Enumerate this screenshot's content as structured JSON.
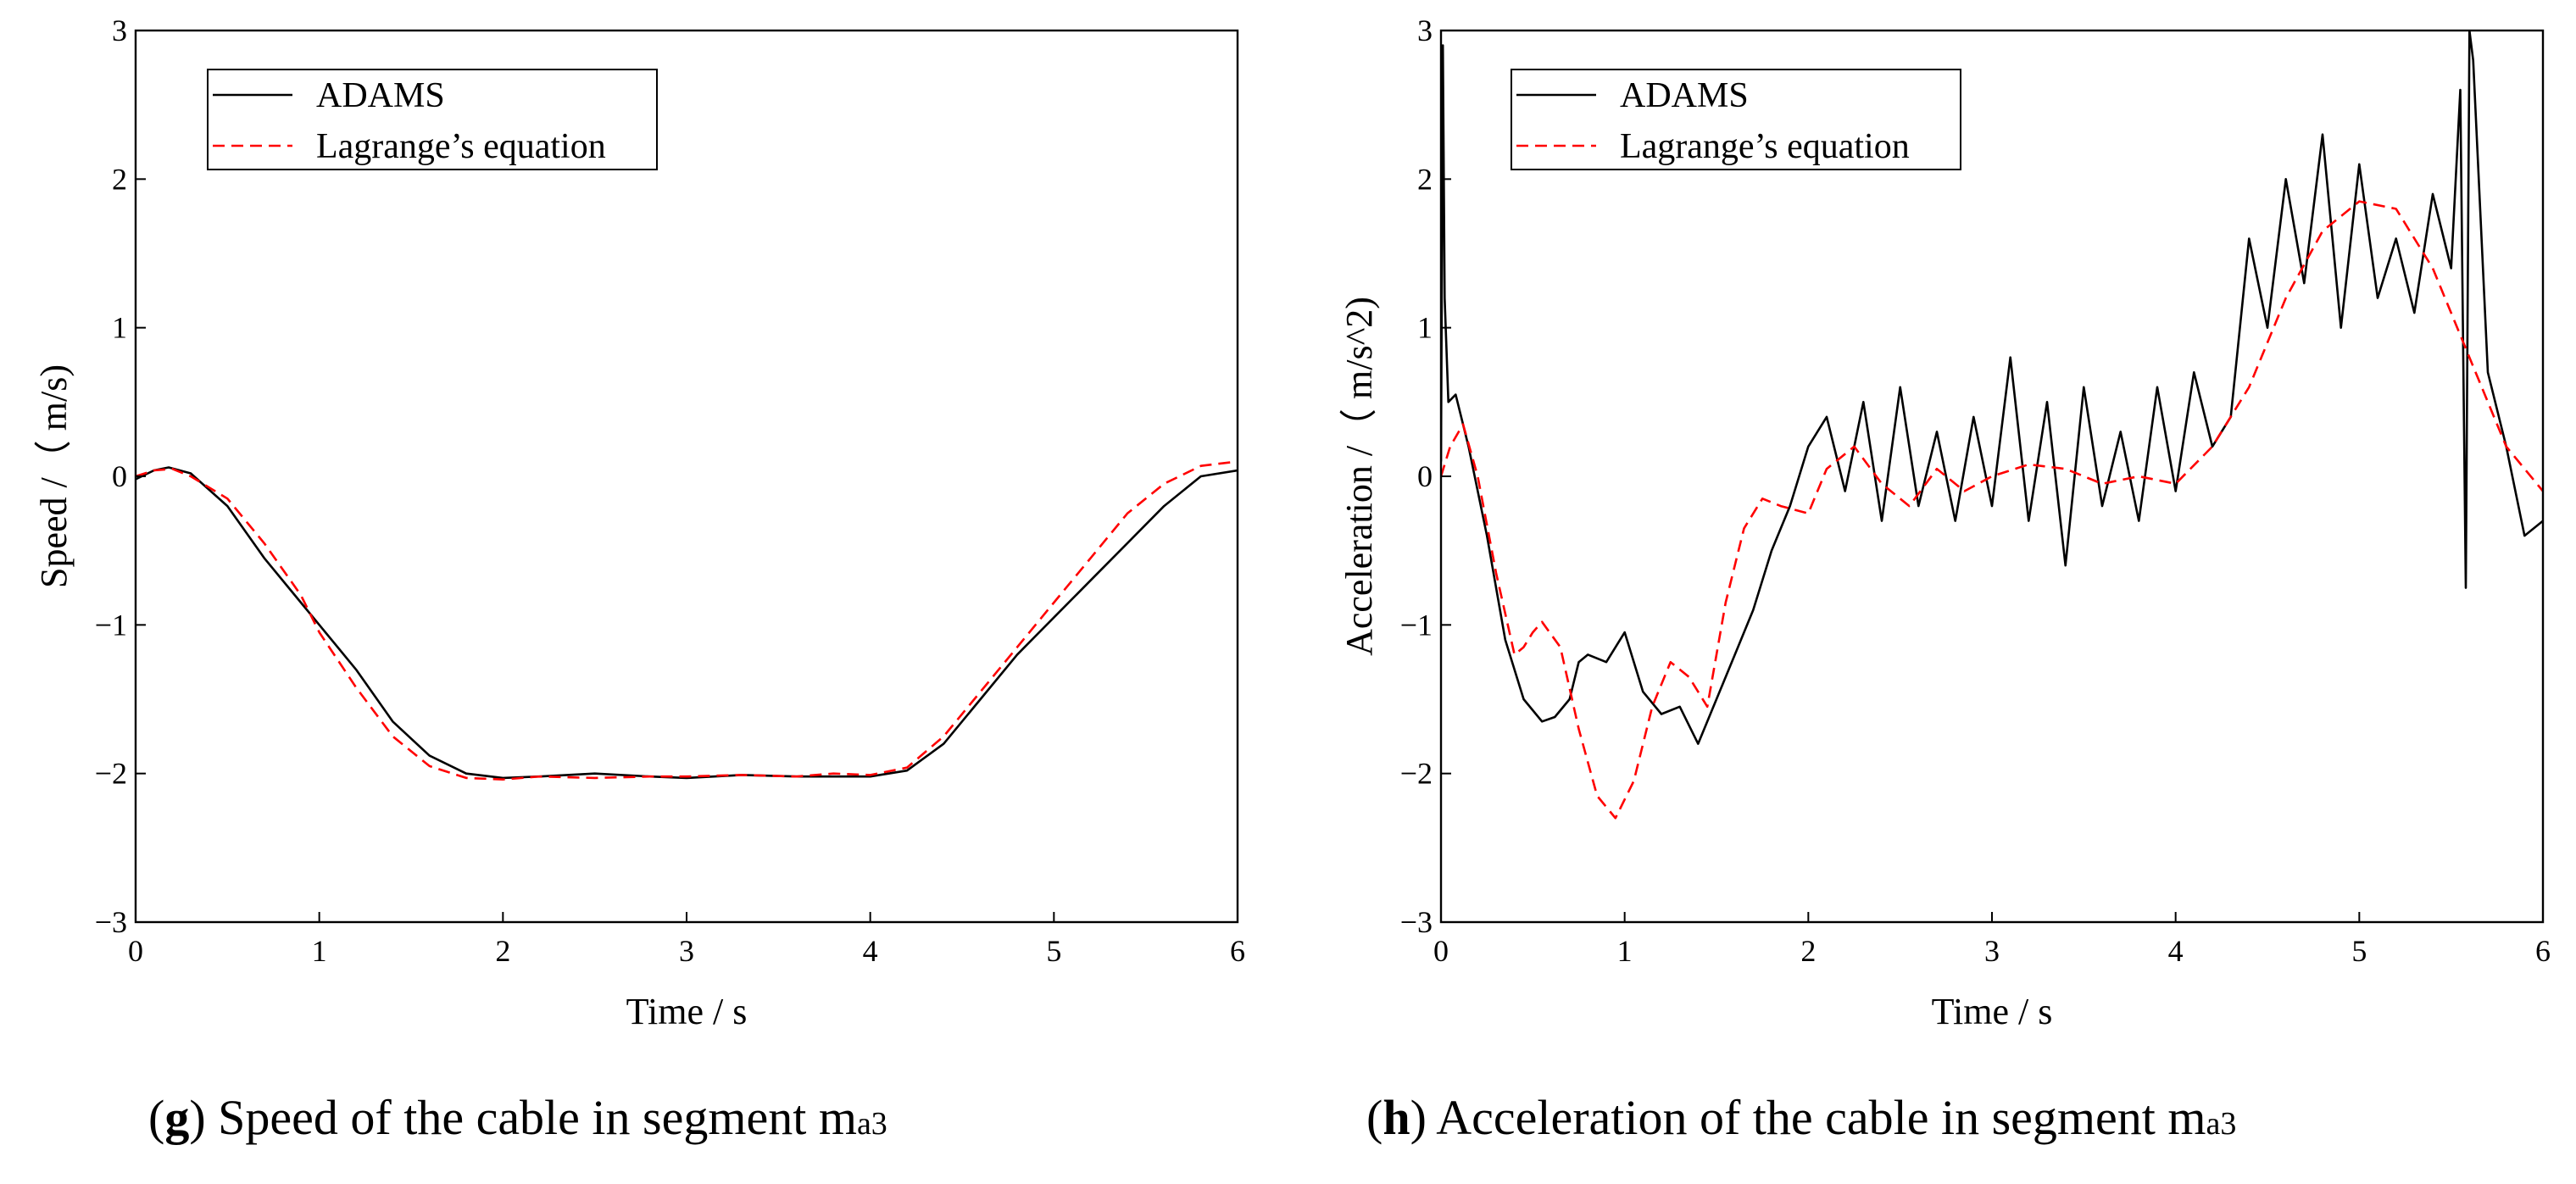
{
  "chart_data": [
    {
      "type": "line",
      "xlabel": "Time / s",
      "ylabel": "Speed /（ m/s)",
      "xlim": [
        0,
        6
      ],
      "ylim": [
        -3,
        3
      ],
      "xticks": [
        0,
        1,
        2,
        3,
        4,
        5,
        6
      ],
      "yticks": [
        -3,
        -2,
        -1,
        0,
        1,
        2,
        3
      ],
      "xtick_labels": [
        "0",
        "1",
        "2",
        "3",
        "4",
        "5",
        "6"
      ],
      "ytick_labels": [
        "−3",
        "−2",
        "−1",
        "0",
        "1",
        "2",
        "3"
      ],
      "grid": false,
      "legend_position": "top-left",
      "series": [
        {
          "name": "ADAMS",
          "color": "#000000",
          "style": "solid",
          "x": [
            0,
            0.1,
            0.18,
            0.3,
            0.5,
            0.7,
            0.9,
            1.0,
            1.2,
            1.4,
            1.6,
            1.8,
            2.0,
            2.2,
            2.5,
            2.8,
            3.0,
            3.3,
            3.6,
            3.8,
            4.0,
            4.2,
            4.4,
            4.6,
            4.8,
            5.0,
            5.2,
            5.4,
            5.6,
            5.8,
            6.0
          ],
          "y": [
            -0.02,
            0.04,
            0.06,
            0.02,
            -0.2,
            -0.55,
            -0.85,
            -1.0,
            -1.3,
            -1.65,
            -1.88,
            -2.0,
            -2.03,
            -2.02,
            -2.0,
            -2.02,
            -2.03,
            -2.01,
            -2.02,
            -2.02,
            -2.02,
            -1.98,
            -1.8,
            -1.5,
            -1.2,
            -0.95,
            -0.7,
            -0.45,
            -0.2,
            0.0,
            0.04
          ]
        },
        {
          "name": "Lagrange’s equation",
          "color": "#ff0000",
          "style": "dashed",
          "x": [
            0,
            0.1,
            0.2,
            0.3,
            0.5,
            0.7,
            0.9,
            1.0,
            1.2,
            1.4,
            1.6,
            1.8,
            2.0,
            2.2,
            2.5,
            2.8,
            3.0,
            3.3,
            3.6,
            3.8,
            4.0,
            4.2,
            4.4,
            4.6,
            4.8,
            5.0,
            5.2,
            5.4,
            5.6,
            5.8,
            6.0
          ],
          "y": [
            0.0,
            0.04,
            0.05,
            0.0,
            -0.15,
            -0.45,
            -0.8,
            -1.05,
            -1.42,
            -1.75,
            -1.95,
            -2.03,
            -2.04,
            -2.02,
            -2.03,
            -2.02,
            -2.02,
            -2.01,
            -2.02,
            -2.0,
            -2.01,
            -1.96,
            -1.75,
            -1.45,
            -1.15,
            -0.85,
            -0.55,
            -0.25,
            -0.05,
            0.07,
            0.1
          ]
        }
      ]
    },
    {
      "type": "line",
      "xlabel": "Time / s",
      "ylabel": "Acceleration /（ m/s^2)",
      "xlim": [
        0,
        6
      ],
      "ylim": [
        -3,
        3
      ],
      "xticks": [
        0,
        1,
        2,
        3,
        4,
        5,
        6
      ],
      "yticks": [
        -3,
        -2,
        -1,
        0,
        1,
        2,
        3
      ],
      "xtick_labels": [
        "0",
        "1",
        "2",
        "3",
        "4",
        "5",
        "6"
      ],
      "ytick_labels": [
        "−3",
        "−2",
        "−1",
        "0",
        "1",
        "2",
        "3"
      ],
      "grid": false,
      "legend_position": "top-left",
      "series": [
        {
          "name": "ADAMS",
          "color": "#000000",
          "style": "solid",
          "x": [
            0,
            0.01,
            0.02,
            0.04,
            0.08,
            0.15,
            0.25,
            0.35,
            0.45,
            0.55,
            0.62,
            0.7,
            0.75,
            0.8,
            0.9,
            1.0,
            1.1,
            1.2,
            1.3,
            1.4,
            1.5,
            1.6,
            1.7,
            1.8,
            1.9,
            2.0,
            2.1,
            2.2,
            2.3,
            2.4,
            2.5,
            2.6,
            2.7,
            2.8,
            2.9,
            3.0,
            3.1,
            3.2,
            3.3,
            3.4,
            3.5,
            3.6,
            3.7,
            3.8,
            3.9,
            4.0,
            4.1,
            4.2,
            4.3,
            4.4,
            4.5,
            4.6,
            4.7,
            4.8,
            4.9,
            5.0,
            5.1,
            5.2,
            5.3,
            5.4,
            5.5,
            5.55,
            5.58,
            5.6,
            5.62,
            5.7,
            5.8,
            5.9,
            6.0
          ],
          "y": [
            0.1,
            2.9,
            1.2,
            0.5,
            0.55,
            0.2,
            -0.4,
            -1.1,
            -1.5,
            -1.65,
            -1.62,
            -1.5,
            -1.25,
            -1.2,
            -1.25,
            -1.05,
            -1.45,
            -1.6,
            -1.55,
            -1.8,
            -1.5,
            -1.2,
            -0.9,
            -0.5,
            -0.2,
            0.2,
            0.4,
            -0.1,
            0.5,
            -0.3,
            0.6,
            -0.2,
            0.3,
            -0.3,
            0.4,
            -0.2,
            0.8,
            -0.3,
            0.5,
            -0.6,
            0.6,
            -0.2,
            0.3,
            -0.3,
            0.6,
            -0.1,
            0.7,
            0.2,
            0.4,
            1.6,
            1.0,
            2.0,
            1.3,
            2.3,
            1.0,
            2.1,
            1.2,
            1.6,
            1.1,
            1.9,
            1.4,
            2.6,
            -0.75,
            3.0,
            2.8,
            0.7,
            0.2,
            -0.4,
            -0.3
          ]
        },
        {
          "name": "Lagrange’s equation",
          "color": "#ff0000",
          "style": "dashed",
          "x": [
            0,
            0.05,
            0.12,
            0.2,
            0.3,
            0.4,
            0.45,
            0.5,
            0.55,
            0.65,
            0.75,
            0.85,
            0.95,
            1.05,
            1.15,
            1.25,
            1.35,
            1.45,
            1.55,
            1.65,
            1.75,
            1.85,
            2.0,
            2.1,
            2.25,
            2.4,
            2.55,
            2.7,
            2.85,
            3.0,
            3.2,
            3.4,
            3.6,
            3.8,
            4.0,
            4.2,
            4.4,
            4.6,
            4.8,
            5.0,
            5.2,
            5.4,
            5.6,
            5.8,
            6.0
          ],
          "y": [
            0.0,
            0.2,
            0.35,
            0.0,
            -0.65,
            -1.2,
            -1.15,
            -1.05,
            -0.98,
            -1.15,
            -1.7,
            -2.15,
            -2.3,
            -2.05,
            -1.55,
            -1.25,
            -1.35,
            -1.55,
            -0.85,
            -0.35,
            -0.15,
            -0.2,
            -0.25,
            0.05,
            0.2,
            -0.05,
            -0.2,
            0.05,
            -0.1,
            0.0,
            0.08,
            0.05,
            -0.05,
            0.0,
            -0.05,
            0.2,
            0.6,
            1.2,
            1.65,
            1.85,
            1.8,
            1.4,
            0.8,
            0.2,
            -0.1
          ]
        }
      ]
    }
  ],
  "captions": [
    {
      "letter": "g",
      "text": " Speed of the cable in segment m",
      "sub": "a3"
    },
    {
      "letter": "h",
      "text": " Acceleration of the cable in segment m",
      "sub": "a3"
    }
  ]
}
